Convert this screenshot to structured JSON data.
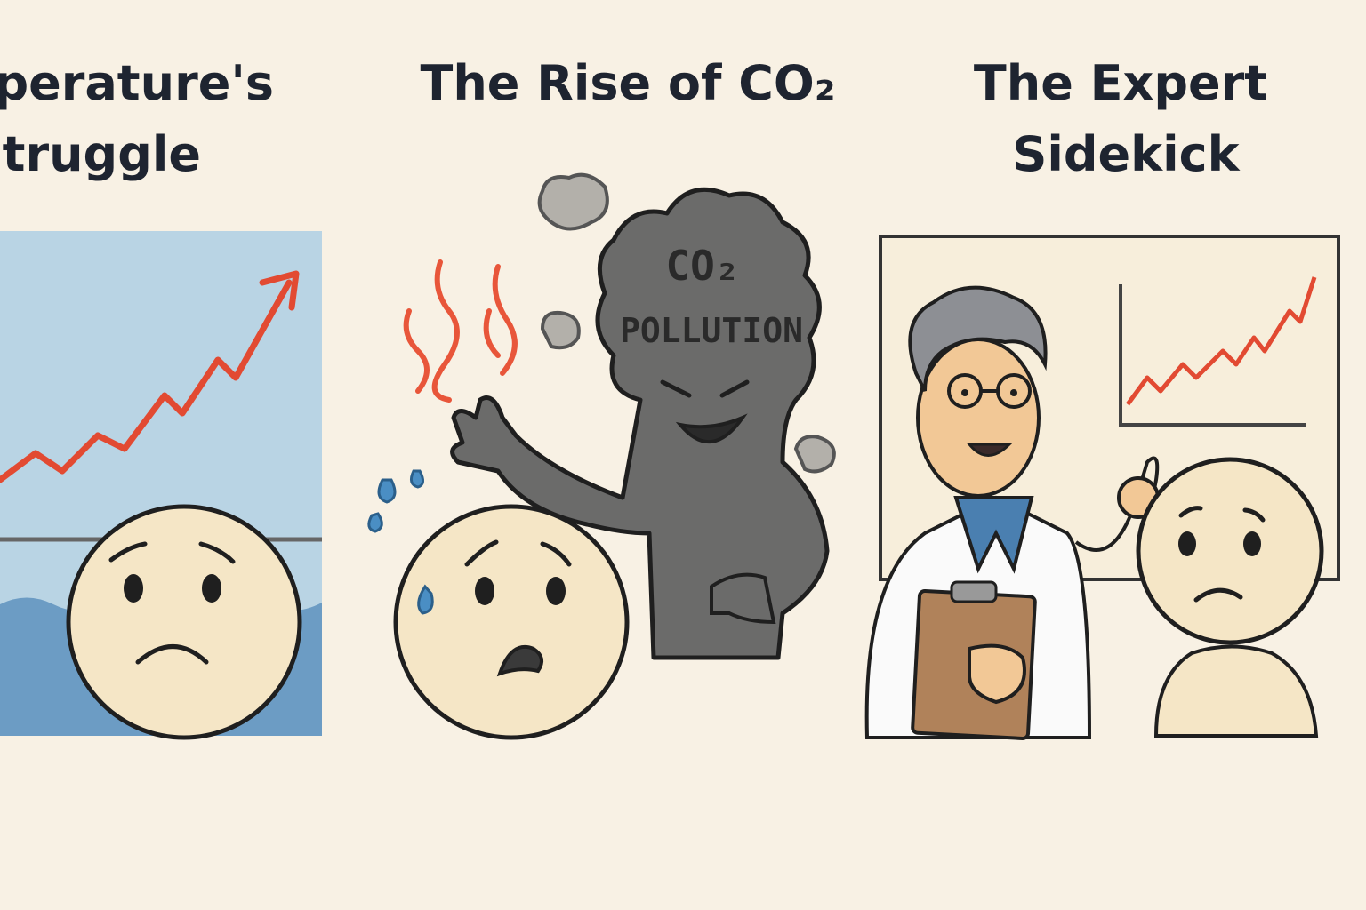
{
  "panels": [
    {
      "title_lines": [
        "Temperature's",
        "Struggle"
      ]
    },
    {
      "title_lines": [
        "The Rise of CO₂"
      ],
      "cloud_lines": [
        "CO₂",
        "POLLUTION"
      ]
    },
    {
      "title_lines": [
        "The Expert",
        "Sidekick"
      ]
    }
  ]
}
